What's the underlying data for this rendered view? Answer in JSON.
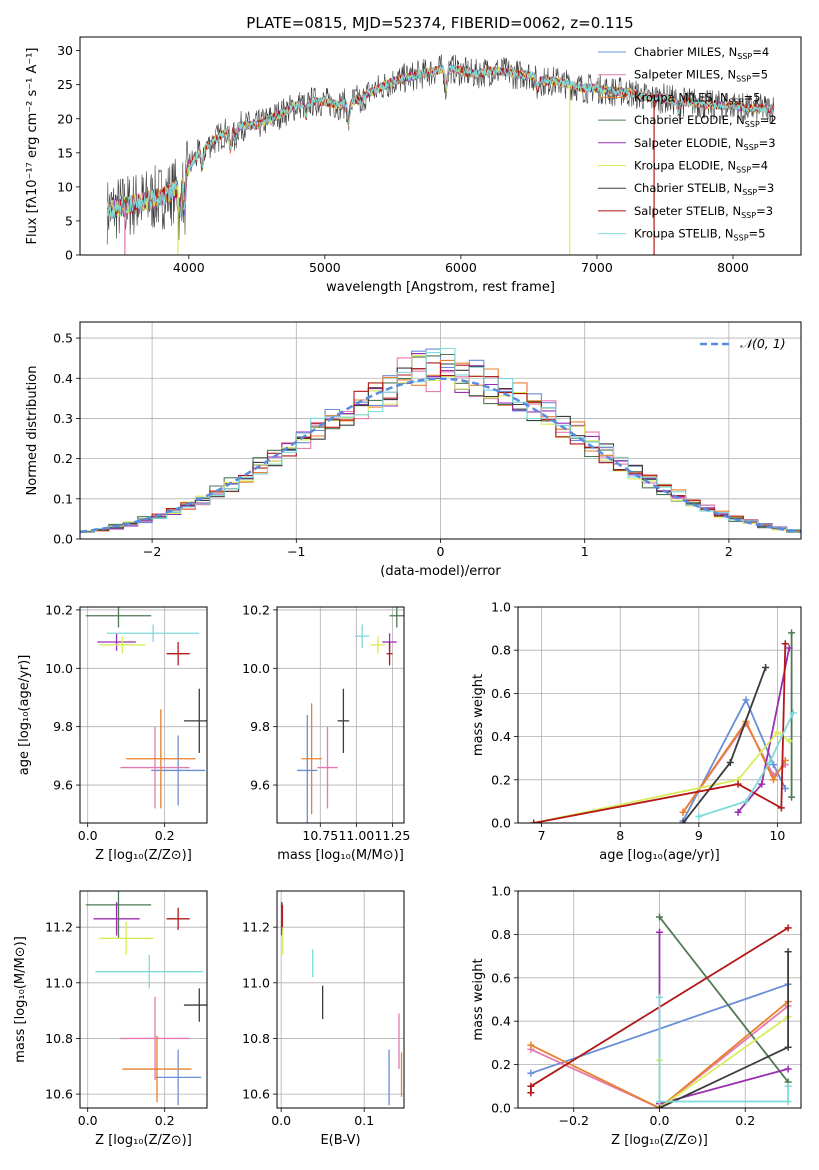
{
  "figure": {
    "title": "PLATE=0815, MJD=52374, FIBERID=0062, z=0.115"
  },
  "colors": {
    "Chabrier MILES": "#6a8fd8",
    "Salpeter MILES": "#e579b0",
    "Kroupa MILES": "#e8812c",
    "Chabrier ELODIE": "#4d7a52",
    "Salpeter ELODIE": "#9a2eb0",
    "Kroupa ELODIE": "#d9ec5a",
    "Chabrier STELIB": "#3c3c3c",
    "Salpeter STELIB": "#b21818",
    "Kroupa STELIB": "#7fdada",
    "normal": "#5b8be0"
  },
  "chart_data": [
    {
      "id": "spectrum",
      "type": "line",
      "title": "PLATE=0815, MJD=52374, FIBERID=0062, z=0.115",
      "xlabel": "wavelength [Angstrom, rest frame]",
      "ylabel": "Flux [fλ10⁻¹⁷ erg cm⁻² s⁻¹ A⁻¹]",
      "xlim": [
        3200,
        8500
      ],
      "ylim": [
        0,
        32
      ],
      "xticks": [
        4000,
        5000,
        6000,
        7000,
        8000
      ],
      "yticks": [
        0,
        5,
        10,
        15,
        20,
        25,
        30
      ],
      "grid": false,
      "legend_position": "right",
      "legend": [
        "Chabrier MILES, N_SSP=4",
        "Salpeter MILES, N_SSP=5",
        "Kroupa MILES, N_SSP=5",
        "Chabrier ELODIE, N_SSP=2",
        "Salpeter ELODIE, N_SSP=3",
        "Kroupa ELODIE, N_SSP=4",
        "Chabrier STELIB, N_SSP=3",
        "Salpeter STELIB, N_SSP=3",
        "Kroupa STELIB, N_SSP=5"
      ],
      "continuum": {
        "x": [
          3400,
          3500,
          3600,
          3700,
          3800,
          3900,
          4000,
          4100,
          4200,
          4300,
          4400,
          4500,
          4600,
          4700,
          4800,
          4900,
          5000,
          5100,
          5200,
          5300,
          5400,
          5500,
          5600,
          5700,
          5800,
          5900,
          6000,
          6100,
          6200,
          6300,
          6400,
          6500,
          6600,
          6700,
          6800,
          6900,
          7000,
          7100,
          7200,
          7300,
          7400,
          7500,
          7600,
          7700,
          7800,
          7900,
          8000,
          8100,
          8200,
          8300
        ],
        "y": [
          6.5,
          7,
          7.5,
          8,
          8.5,
          9.5,
          13,
          15.5,
          17,
          18.5,
          19,
          19,
          20,
          21,
          22,
          22.5,
          22.5,
          22,
          22.5,
          23.5,
          24.5,
          25.5,
          26,
          26.5,
          27,
          27.5,
          27,
          26.5,
          27,
          27,
          26.5,
          26.5,
          25.5,
          25.5,
          25,
          24.5,
          24.5,
          24,
          24,
          23.5,
          23,
          23,
          22.5,
          22.5,
          22,
          22,
          22,
          21.5,
          21.5,
          21.5
        ]
      },
      "drops": [
        3530,
        3920,
        6800,
        7420
      ]
    },
    {
      "id": "residuals",
      "type": "line",
      "xlabel": "(data-model)/error",
      "ylabel": "Normed distribution",
      "xlim": [
        -2.5,
        2.5
      ],
      "ylim": [
        0,
        0.54
      ],
      "xticks": [
        -2,
        -1,
        0,
        1,
        2
      ],
      "yticks": [
        0.0,
        0.1,
        0.2,
        0.3,
        0.4,
        0.5
      ],
      "grid": true,
      "legend_position": "top-right",
      "legend": [
        "𝒩(0, 1)"
      ],
      "bin_width": 0.1,
      "bin_start": -2.5,
      "peak_offsets": [
        0.12,
        0.14,
        0.16,
        -0.05,
        0.18,
        0.02,
        0.11,
        0.08,
        0.1
      ]
    },
    {
      "id": "age-vs-Z",
      "type": "scatter",
      "xlabel": "Z [log₁₀(Z/Z⊙)]",
      "ylabel": "age  [log₁₀(age/yr)]",
      "xlim": [
        -0.02,
        0.31
      ],
      "ylim": [
        9.47,
        10.21
      ],
      "xticks": [
        0.0,
        0.2
      ],
      "yticks": [
        9.6,
        9.8,
        10.0,
        10.2
      ],
      "grid": true,
      "points": [
        {
          "model": "Chabrier MILES",
          "x": 0.235,
          "y": 9.65,
          "xerr": 0.07,
          "yerr": 0.12
        },
        {
          "model": "Salpeter MILES",
          "x": 0.175,
          "y": 9.66,
          "xerr": 0.09,
          "yerr": 0.14
        },
        {
          "model": "Kroupa MILES",
          "x": 0.19,
          "y": 9.69,
          "xerr": 0.09,
          "yerr": 0.17
        },
        {
          "model": "Chabrier ELODIE",
          "x": 0.08,
          "y": 10.18,
          "xerr": 0.085,
          "yerr": 0.04
        },
        {
          "model": "Salpeter ELODIE",
          "x": 0.075,
          "y": 10.09,
          "xerr": 0.05,
          "yerr": 0.03
        },
        {
          "model": "Kroupa ELODIE",
          "x": 0.09,
          "y": 10.08,
          "xerr": 0.06,
          "yerr": 0.03
        },
        {
          "model": "Chabrier STELIB",
          "x": 0.29,
          "y": 9.82,
          "xerr": 0.04,
          "yerr": 0.11
        },
        {
          "model": "Salpeter STELIB",
          "x": 0.235,
          "y": 10.05,
          "xerr": 0.03,
          "yerr": 0.04
        },
        {
          "model": "Kroupa STELIB",
          "x": 0.17,
          "y": 10.12,
          "xerr": 0.12,
          "yerr": 0.03
        }
      ]
    },
    {
      "id": "age-vs-mass",
      "type": "scatter",
      "xlabel": "mass [log₁₀(M/M⊙)]",
      "xlim": [
        10.45,
        11.33
      ],
      "ylim": [
        9.47,
        10.21
      ],
      "xticks": [
        10.75,
        11.0,
        11.25
      ],
      "xtick_labels": [
        "10.75",
        "11.00",
        "11.25"
      ],
      "yticks": [
        9.6,
        9.8,
        10.0,
        10.2
      ],
      "grid": true,
      "points": [
        {
          "model": "Chabrier MILES",
          "x": 10.66,
          "y": 9.65,
          "xerr": 0.07,
          "yerr": 0.19
        },
        {
          "model": "Salpeter MILES",
          "x": 10.8,
          "y": 9.66,
          "xerr": 0.07,
          "yerr": 0.14
        },
        {
          "model": "Kroupa MILES",
          "x": 10.69,
          "y": 9.69,
          "xerr": 0.07,
          "yerr": 0.19
        },
        {
          "model": "Chabrier ELODIE",
          "x": 11.28,
          "y": 10.18,
          "xerr": 0.05,
          "yerr": 0.04
        },
        {
          "model": "Salpeter ELODIE",
          "x": 11.23,
          "y": 10.09,
          "xerr": 0.05,
          "yerr": 0.03
        },
        {
          "model": "Kroupa ELODIE",
          "x": 11.15,
          "y": 10.08,
          "xerr": 0.05,
          "yerr": 0.03
        },
        {
          "model": "Chabrier STELIB",
          "x": 10.91,
          "y": 9.82,
          "xerr": 0.04,
          "yerr": 0.11
        },
        {
          "model": "Salpeter STELIB",
          "x": 11.23,
          "y": 10.05,
          "xerr": 0.02,
          "yerr": 0.04
        },
        {
          "model": "Kroupa STELIB",
          "x": 11.04,
          "y": 10.11,
          "xerr": 0.05,
          "yerr": 0.04
        }
      ]
    },
    {
      "id": "weight-vs-age",
      "type": "line",
      "xlabel": "age  [log₁₀(age/yr)]",
      "ylabel": "mass weight",
      "xlim": [
        6.7,
        10.3
      ],
      "ylim": [
        0,
        1
      ],
      "xticks": [
        7,
        8,
        9,
        10
      ],
      "yticks": [
        0.0,
        0.2,
        0.4,
        0.6,
        0.8,
        1.0
      ],
      "grid": true,
      "series": [
        {
          "model": "Chabrier MILES",
          "x": [
            8.8,
            9.6,
            9.95,
            10.1
          ],
          "y": [
            0.01,
            0.57,
            0.27,
            0.16
          ]
        },
        {
          "model": "Salpeter MILES",
          "x": [
            8.8,
            9.6,
            9.95,
            10.1
          ],
          "y": [
            0.05,
            0.46,
            0.22,
            0.27
          ]
        },
        {
          "model": "Kroupa MILES",
          "x": [
            8.8,
            9.6,
            9.95,
            10.1
          ],
          "y": [
            0.05,
            0.47,
            0.2,
            0.29
          ]
        },
        {
          "model": "Chabrier ELODIE",
          "x": [
            10.18,
            10.18
          ],
          "y": [
            0.12,
            0.88
          ]
        },
        {
          "model": "Salpeter ELODIE",
          "x": [
            9.5,
            9.8,
            10.15
          ],
          "y": [
            0.05,
            0.18,
            0.81
          ]
        },
        {
          "model": "Kroupa ELODIE",
          "x": [
            6.9,
            9.5,
            10.0,
            10.15
          ],
          "y": [
            0.0,
            0.2,
            0.42,
            0.38
          ]
        },
        {
          "model": "Chabrier STELIB",
          "x": [
            8.8,
            9.4,
            9.85
          ],
          "y": [
            0.0,
            0.28,
            0.72
          ]
        },
        {
          "model": "Salpeter STELIB",
          "x": [
            6.9,
            9.5,
            10.05,
            10.1
          ],
          "y": [
            0.0,
            0.18,
            0.07,
            0.83
          ]
        },
        {
          "model": "Kroupa STELIB",
          "x": [
            9.0,
            9.6,
            9.9,
            10.2
          ],
          "y": [
            0.03,
            0.1,
            0.28,
            0.51
          ]
        }
      ]
    },
    {
      "id": "mass-vs-Z",
      "type": "scatter",
      "xlabel": "Z [log₁₀(Z/Z⊙)]",
      "ylabel": "mass [log₁₀(M/M⊙)]",
      "xlim": [
        -0.02,
        0.31
      ],
      "ylim": [
        10.55,
        11.33
      ],
      "xticks": [
        0.0,
        0.2
      ],
      "yticks": [
        10.6,
        10.8,
        11.0,
        11.2
      ],
      "grid": true,
      "points": [
        {
          "model": "Chabrier MILES",
          "x": 0.235,
          "y": 10.66,
          "xerr": 0.06,
          "yerr": 0.1
        },
        {
          "model": "Salpeter MILES",
          "x": 0.175,
          "y": 10.8,
          "xerr": 0.09,
          "yerr": 0.15
        },
        {
          "model": "Kroupa MILES",
          "x": 0.18,
          "y": 10.69,
          "xerr": 0.09,
          "yerr": 0.12
        },
        {
          "model": "Chabrier ELODIE",
          "x": 0.08,
          "y": 11.28,
          "xerr": 0.085,
          "yerr": 0.12
        },
        {
          "model": "Salpeter ELODIE",
          "x": 0.075,
          "y": 11.23,
          "xerr": 0.06,
          "yerr": 0.06
        },
        {
          "model": "Kroupa ELODIE",
          "x": 0.1,
          "y": 11.16,
          "xerr": 0.07,
          "yerr": 0.06
        },
        {
          "model": "Chabrier STELIB",
          "x": 0.29,
          "y": 10.92,
          "xerr": 0.04,
          "yerr": 0.06
        },
        {
          "model": "Salpeter STELIB",
          "x": 0.235,
          "y": 11.23,
          "xerr": 0.03,
          "yerr": 0.04
        },
        {
          "model": "Kroupa STELIB",
          "x": 0.16,
          "y": 11.04,
          "xerr": 0.14,
          "yerr": 0.06
        }
      ]
    },
    {
      "id": "mass-vs-ebv",
      "type": "scatter",
      "xlabel": "E(B-V)",
      "xlim": [
        -0.005,
        0.148
      ],
      "ylim": [
        10.55,
        11.33
      ],
      "xticks": [
        0.0,
        0.1
      ],
      "yticks": [
        10.6,
        10.8,
        11.0,
        11.2
      ],
      "grid": true,
      "points": [
        {
          "model": "Chabrier MILES",
          "x": 0.13,
          "y": 10.66,
          "xerr": 0,
          "yerr": 0.1
        },
        {
          "model": "Salpeter MILES",
          "x": 0.142,
          "y": 10.79,
          "xerr": 0,
          "yerr": 0.1
        },
        {
          "model": "Kroupa MILES",
          "x": 0.145,
          "y": 10.67,
          "xerr": 0,
          "yerr": 0.08
        },
        {
          "model": "Chabrier ELODIE",
          "x": 0.001,
          "y": 11.24,
          "xerr": 0,
          "yerr": 0.05
        },
        {
          "model": "Salpeter ELODIE",
          "x": 0.0005,
          "y": 11.23,
          "xerr": 0,
          "yerr": 0.06
        },
        {
          "model": "Kroupa ELODIE",
          "x": 0.002,
          "y": 11.15,
          "xerr": 0,
          "yerr": 0.05
        },
        {
          "model": "Chabrier STELIB",
          "x": 0.05,
          "y": 10.93,
          "xerr": 0,
          "yerr": 0.06
        },
        {
          "model": "Salpeter STELIB",
          "x": 0.0015,
          "y": 11.24,
          "xerr": 0,
          "yerr": 0.04
        },
        {
          "model": "Kroupa STELIB",
          "x": 0.038,
          "y": 11.07,
          "xerr": 0,
          "yerr": 0.05
        }
      ]
    },
    {
      "id": "weight-vs-Z",
      "type": "line",
      "xlabel": "Z [log₁₀(Z/Z⊙)]",
      "ylabel": "mass weight",
      "xlim": [
        -0.33,
        0.33
      ],
      "ylim": [
        0,
        1
      ],
      "xticks": [
        -0.2,
        0.0,
        0.2
      ],
      "xtick_labels": [
        "−0.2",
        "0.0",
        "0.2"
      ],
      "yticks": [
        0.0,
        0.2,
        0.4,
        0.6,
        0.8,
        1.0
      ],
      "grid": true,
      "series": [
        {
          "model": "Chabrier MILES",
          "x": [
            -0.3,
            0.3
          ],
          "y": [
            0.16,
            0.57
          ]
        },
        {
          "model": "Salpeter MILES",
          "x": [
            -0.3,
            0.0,
            0.3
          ],
          "y": [
            0.27,
            0.0,
            0.47
          ]
        },
        {
          "model": "Kroupa MILES",
          "x": [
            -0.3,
            0.0,
            0.3
          ],
          "y": [
            0.29,
            0.0,
            0.49
          ]
        },
        {
          "model": "Chabrier ELODIE",
          "x": [
            0.0,
            0.3
          ],
          "y": [
            0.88,
            0.12
          ]
        },
        {
          "model": "Salpeter ELODIE",
          "x": [
            0.0,
            0.0,
            0.3
          ],
          "y": [
            0.81,
            0.02,
            0.18
          ]
        },
        {
          "model": "Kroupa ELODIE",
          "x": [
            0.0,
            0.0,
            0.3
          ],
          "y": [
            0.22,
            0.0,
            0.42
          ]
        },
        {
          "model": "Chabrier STELIB",
          "x": [
            0.0,
            0.3,
            0.3
          ],
          "y": [
            0.0,
            0.28,
            0.72
          ]
        },
        {
          "model": "Salpeter STELIB",
          "x": [
            -0.3,
            -0.3,
            0.3
          ],
          "y": [
            0.07,
            0.1,
            0.83
          ]
        },
        {
          "model": "Kroupa STELIB",
          "x": [
            0.0,
            0.0,
            0.3,
            0.3
          ],
          "y": [
            0.51,
            0.03,
            0.03,
            0.1
          ]
        }
      ]
    }
  ]
}
